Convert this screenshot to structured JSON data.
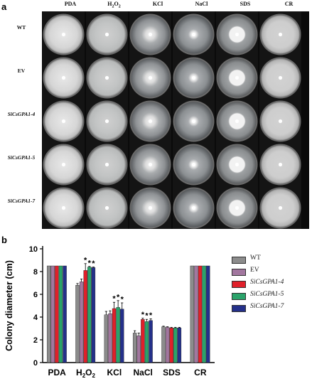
{
  "figure": {
    "panel_a_label": "a",
    "panel_b_label": "b",
    "column_headers": [
      "PDA",
      "H",
      "KCl",
      "NaCl",
      "SDS",
      "CR"
    ],
    "h2o2_header_parts": {
      "main": "H",
      "sub1": "2",
      "mid": "O",
      "sub2": "2"
    },
    "row_headers": [
      {
        "label": "WT",
        "italic": false
      },
      {
        "label": "EV",
        "italic": false
      },
      {
        "label": "SiCsGPA1-4",
        "italic": true
      },
      {
        "label": "SiCsGPA1-5",
        "italic": true
      },
      {
        "label": "SiCsGPA1-7",
        "italic": true
      }
    ]
  },
  "chart_data": {
    "type": "bar",
    "ylabel": "Colony diameter (cm)",
    "xlabel": "",
    "ylim": [
      0,
      10
    ],
    "yticks": [
      0,
      2,
      4,
      6,
      8,
      10
    ],
    "categories": [
      "PDA",
      "H2O2",
      "KCl",
      "NaCl",
      "SDS",
      "CR"
    ],
    "category_display": [
      {
        "main": "PDA",
        "sub": "",
        "tail": ""
      },
      {
        "main": "H",
        "sub": "2",
        "mid": "O",
        "sub2": "2"
      },
      {
        "main": "KCl",
        "sub": "",
        "tail": ""
      },
      {
        "main": "NaCl",
        "sub": "",
        "tail": ""
      },
      {
        "main": "SDS",
        "sub": "",
        "tail": ""
      },
      {
        "main": "CR",
        "sub": "",
        "tail": ""
      }
    ],
    "series": [
      {
        "name": "WT",
        "italic": false,
        "color": "#8c8c8c",
        "values": [
          8.5,
          6.8,
          4.2,
          2.6,
          3.15,
          8.5
        ],
        "errors": [
          0,
          0.15,
          0.3,
          0.2,
          0.05,
          0
        ]
      },
      {
        "name": "EV",
        "italic": false,
        "color": "#a2779f",
        "values": [
          8.5,
          7.1,
          4.3,
          2.35,
          3.1,
          8.5
        ],
        "errors": [
          0,
          0.25,
          0.25,
          0.25,
          0.05,
          0
        ]
      },
      {
        "name": "SiCsGPA1-4",
        "italic": true,
        "color": "#e0202a",
        "values": [
          8.5,
          8.1,
          4.75,
          3.8,
          3.05,
          8.5
        ],
        "errors": [
          0,
          0.6,
          0.55,
          0.1,
          0.05,
          0
        ]
      },
      {
        "name": "SiCsGPA1-5",
        "italic": true,
        "color": "#2aa36a",
        "values": [
          8.5,
          8.4,
          4.85,
          3.6,
          3.05,
          8.5
        ],
        "errors": [
          0,
          0.05,
          0.6,
          0.2,
          0.05,
          0
        ]
      },
      {
        "name": "SiCsGPA1-7",
        "italic": true,
        "color": "#24308a",
        "values": [
          8.5,
          8.35,
          4.7,
          3.7,
          3.05,
          8.5
        ],
        "errors": [
          0,
          0.05,
          0.55,
          0.15,
          0.05,
          0
        ]
      }
    ],
    "significance": [
      {
        "category": 1,
        "series": 2,
        "label": "*"
      },
      {
        "category": 1,
        "series": 3,
        "label": "*"
      },
      {
        "category": 1,
        "series": 4,
        "label": "*"
      },
      {
        "category": 2,
        "series": 2,
        "label": "*"
      },
      {
        "category": 2,
        "series": 3,
        "label": "*"
      },
      {
        "category": 2,
        "series": 4,
        "label": "*"
      },
      {
        "category": 3,
        "series": 2,
        "label": "*"
      },
      {
        "category": 3,
        "series": 3,
        "label": "*"
      },
      {
        "category": 3,
        "series": 4,
        "label": "*"
      }
    ],
    "grid": false,
    "legend_position": "right"
  }
}
